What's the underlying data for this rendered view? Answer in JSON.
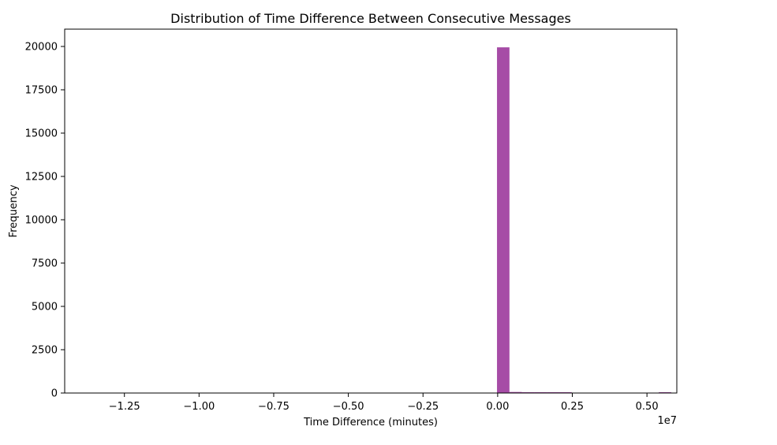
{
  "chart_data": {
    "type": "histogram",
    "title": "Distribution of Time Difference Between Consecutive Messages",
    "xlabel": "Time Difference (minutes)",
    "ylabel": "Frequency",
    "x_offset_label": "1e7",
    "x_scale": 10000000,
    "xlim": [
      -1.45,
      0.6
    ],
    "ylim": [
      0,
      21000
    ],
    "x_ticks": [
      {
        "value": -1.25,
        "label": "−1.25"
      },
      {
        "value": -1.0,
        "label": "−1.00"
      },
      {
        "value": -0.75,
        "label": "−0.75"
      },
      {
        "value": -0.5,
        "label": "−0.50"
      },
      {
        "value": -0.25,
        "label": "−0.25"
      },
      {
        "value": 0.0,
        "label": "0.00"
      },
      {
        "value": 0.25,
        "label": "0.25"
      },
      {
        "value": 0.5,
        "label": "0.50"
      }
    ],
    "y_ticks": [
      {
        "value": 0,
        "label": "0"
      },
      {
        "value": 2500,
        "label": "2500"
      },
      {
        "value": 5000,
        "label": "5000"
      },
      {
        "value": 7500,
        "label": "7500"
      },
      {
        "value": 10000,
        "label": "10000"
      },
      {
        "value": 12500,
        "label": "12500"
      },
      {
        "value": 15000,
        "label": "15000"
      },
      {
        "value": 17500,
        "label": "17500"
      },
      {
        "value": 20000,
        "label": "20000"
      }
    ],
    "bins": [
      {
        "x0": -0.0022,
        "x1": 0.0395,
        "count": 19950
      },
      {
        "x0": 0.0395,
        "x1": 0.0812,
        "count": 60
      },
      {
        "x0": 0.0812,
        "x1": 0.1229,
        "count": 6
      },
      {
        "x0": 0.1229,
        "x1": 0.1646,
        "count": 3
      },
      {
        "x0": 0.1646,
        "x1": 0.2063,
        "count": 2
      },
      {
        "x0": 0.2063,
        "x1": 0.248,
        "count": 1
      },
      {
        "x0": 0.5397,
        "x1": 0.5814,
        "count": 1
      }
    ],
    "bar_color": "#a64ca6",
    "grid": false,
    "legend": "none"
  }
}
